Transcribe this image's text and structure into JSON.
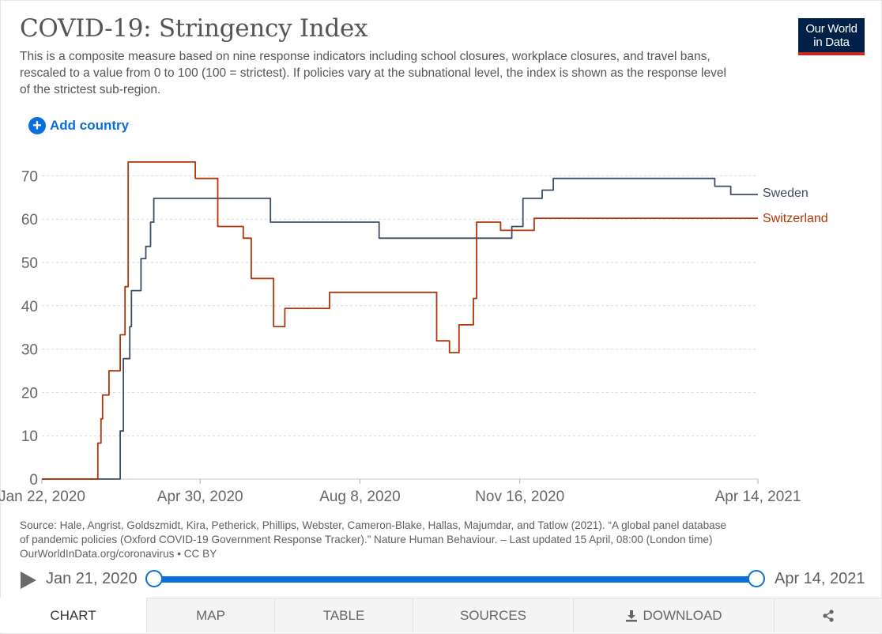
{
  "header": {
    "title": "COVID-19: Stringency Index",
    "subtitle": "This is a composite measure based on nine response indicators including school closures, workplace closures, and travel bans, rescaled to a value from 0 to 100 (100 = strictest). If policies vary at the subnational level, the index is shown as the response level of the strictest sub-region.",
    "logo_line1": "Our World",
    "logo_line2": "in Data"
  },
  "controls": {
    "add_country_label": "Add country",
    "add_country_icon": "plus-circle-icon"
  },
  "chart_data": {
    "type": "line",
    "title": "COVID-19: Stringency Index",
    "xlabel": "",
    "ylabel": "",
    "ylim": [
      0,
      75
    ],
    "x_range": [
      "2020-01-22",
      "2021-04-14"
    ],
    "yticks": [
      0,
      10,
      20,
      30,
      40,
      50,
      60,
      70
    ],
    "xticks": [
      {
        "date": "2020-01-22",
        "label": "Jan 22, 2020"
      },
      {
        "date": "2020-04-30",
        "label": "Apr 30, 2020"
      },
      {
        "date": "2020-08-08",
        "label": "Aug 8, 2020"
      },
      {
        "date": "2020-11-16",
        "label": "Nov 16, 2020"
      },
      {
        "date": "2021-04-14",
        "label": "Apr 14, 2021"
      }
    ],
    "grid": "horizontal dashed",
    "legend": "end-of-line labels",
    "series": [
      {
        "name": "Sweden",
        "color": "#3c4e66",
        "step_points": [
          [
            "2020-01-22",
            0
          ],
          [
            "2020-03-10",
            0
          ],
          [
            "2020-03-11",
            11.1
          ],
          [
            "2020-03-13",
            27.8
          ],
          [
            "2020-03-17",
            35.2
          ],
          [
            "2020-03-18",
            43.5
          ],
          [
            "2020-03-24",
            50.9
          ],
          [
            "2020-03-27",
            53.7
          ],
          [
            "2020-03-30",
            59.3
          ],
          [
            "2020-04-01",
            64.8
          ],
          [
            "2020-06-13",
            59.3
          ],
          [
            "2020-08-20",
            55.6
          ],
          [
            "2020-11-11",
            58.3
          ],
          [
            "2020-11-18",
            64.8
          ],
          [
            "2020-11-30",
            66.7
          ],
          [
            "2020-12-07",
            69.4
          ],
          [
            "2021-03-18",
            67.6
          ],
          [
            "2021-03-28",
            65.7
          ],
          [
            "2021-04-14",
            65.7
          ]
        ]
      },
      {
        "name": "Switzerland",
        "color": "#b13507",
        "step_points": [
          [
            "2020-01-22",
            0
          ],
          [
            "2020-02-25",
            0
          ],
          [
            "2020-02-26",
            8.3
          ],
          [
            "2020-02-28",
            13.9
          ],
          [
            "2020-02-29",
            19.4
          ],
          [
            "2020-03-04",
            25.0
          ],
          [
            "2020-03-11",
            33.3
          ],
          [
            "2020-03-14",
            44.4
          ],
          [
            "2020-03-16",
            73.2
          ],
          [
            "2020-04-27",
            69.4
          ],
          [
            "2020-05-11",
            58.3
          ],
          [
            "2020-05-27",
            55.6
          ],
          [
            "2020-06-01",
            46.3
          ],
          [
            "2020-06-15",
            35.2
          ],
          [
            "2020-06-22",
            39.4
          ],
          [
            "2020-07-20",
            43.1
          ],
          [
            "2020-09-25",
            31.9
          ],
          [
            "2020-10-03",
            29.2
          ],
          [
            "2020-10-09",
            35.6
          ],
          [
            "2020-10-18",
            41.7
          ],
          [
            "2020-10-20",
            59.3
          ],
          [
            "2020-11-04",
            57.4
          ],
          [
            "2020-11-25",
            60.2
          ],
          [
            "2021-04-14",
            60.2
          ]
        ]
      }
    ]
  },
  "footer": {
    "sources_line1": "Source: Hale, Angrist, Goldszmidt, Kira, Petherick, Phillips, Webster, Cameron-Blake, Hallas, Majumdar, and Tatlow (2021). “A global panel database",
    "sources_line2": "of pandemic policies (Oxford COVID-19 Government Response Tracker).” Nature Human Behaviour. – Last updated 15 April, 08:00 (London time)",
    "sources_line3": "OurWorldInData.org/coronavirus • CC BY"
  },
  "timeline": {
    "start_label": "Jan 21, 2020",
    "end_label": "Apr 14, 2021",
    "play_icon": "play-icon"
  },
  "tabs": [
    {
      "label": "CHART",
      "active": true
    },
    {
      "label": "MAP"
    },
    {
      "label": "TABLE"
    },
    {
      "label": "SOURCES"
    },
    {
      "label": "DOWNLOAD",
      "icon": "download-icon"
    },
    {
      "label": "",
      "icon": "share-icon"
    }
  ]
}
